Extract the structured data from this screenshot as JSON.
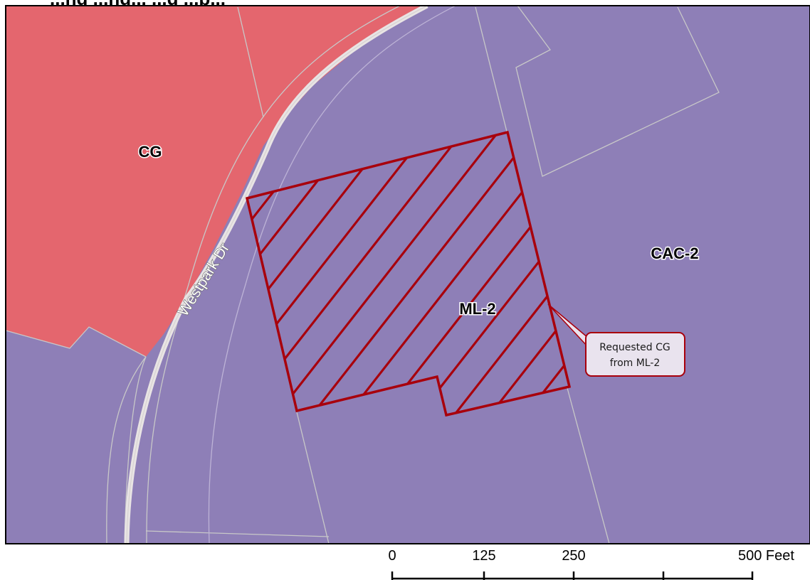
{
  "map": {
    "title_fragment": "...ng ...ng... ...g ...p...",
    "colors": {
      "cg_zone": "#E4666E",
      "cac_zone": "#8E7FB7",
      "parcel_line": "#C8C8C8",
      "road_casing": "#E8E4E4",
      "rezoning_outline": "#A8000C",
      "callout_fill": "#E9E3EE"
    },
    "zones": {
      "cg": "CG",
      "cac2": "CAC-2",
      "ml2": "ML-2"
    },
    "road": {
      "name": "Westpark Dr"
    },
    "callout": {
      "line1": "Requested CG",
      "line2": "from ML-2"
    }
  },
  "scale_bar": {
    "unit": "Feet",
    "labels": [
      "0",
      "125",
      "250",
      "500 Feet"
    ]
  }
}
